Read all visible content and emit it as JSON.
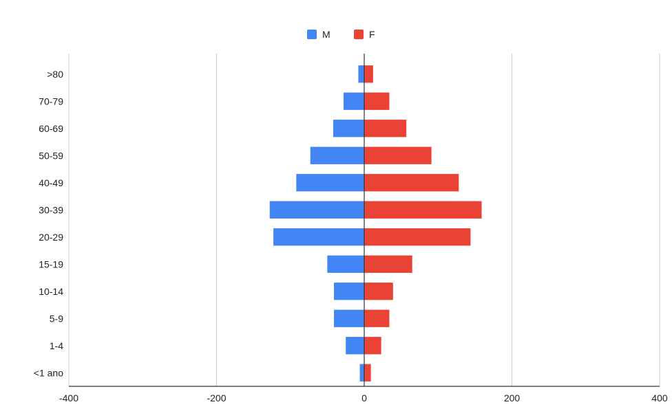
{
  "chart_data": {
    "type": "bar",
    "orientation": "horizontal",
    "stacked_diverging": true,
    "categories": [
      ">80",
      "70-79",
      "60-69",
      "50-59",
      "40-49",
      "30-39",
      "20-29",
      "15-19",
      "10-14",
      "5-9",
      "1-4",
      "<1 ano"
    ],
    "series": [
      {
        "name": "M",
        "color": "#4285f4",
        "values": [
          -8,
          -28,
          -42,
          -73,
          -92,
          -128,
          -123,
          -50,
          -41,
          -41,
          -25,
          -6
        ]
      },
      {
        "name": "F",
        "color": "#ea4335",
        "values": [
          12,
          34,
          57,
          91,
          128,
          159,
          144,
          65,
          39,
          34,
          23,
          9
        ]
      }
    ],
    "x_ticks": [
      -400,
      -200,
      0,
      200,
      400
    ],
    "xlim": [
      -400,
      400
    ],
    "grid": true,
    "legend_position": "top-center",
    "title": "",
    "xlabel": "",
    "ylabel": ""
  }
}
